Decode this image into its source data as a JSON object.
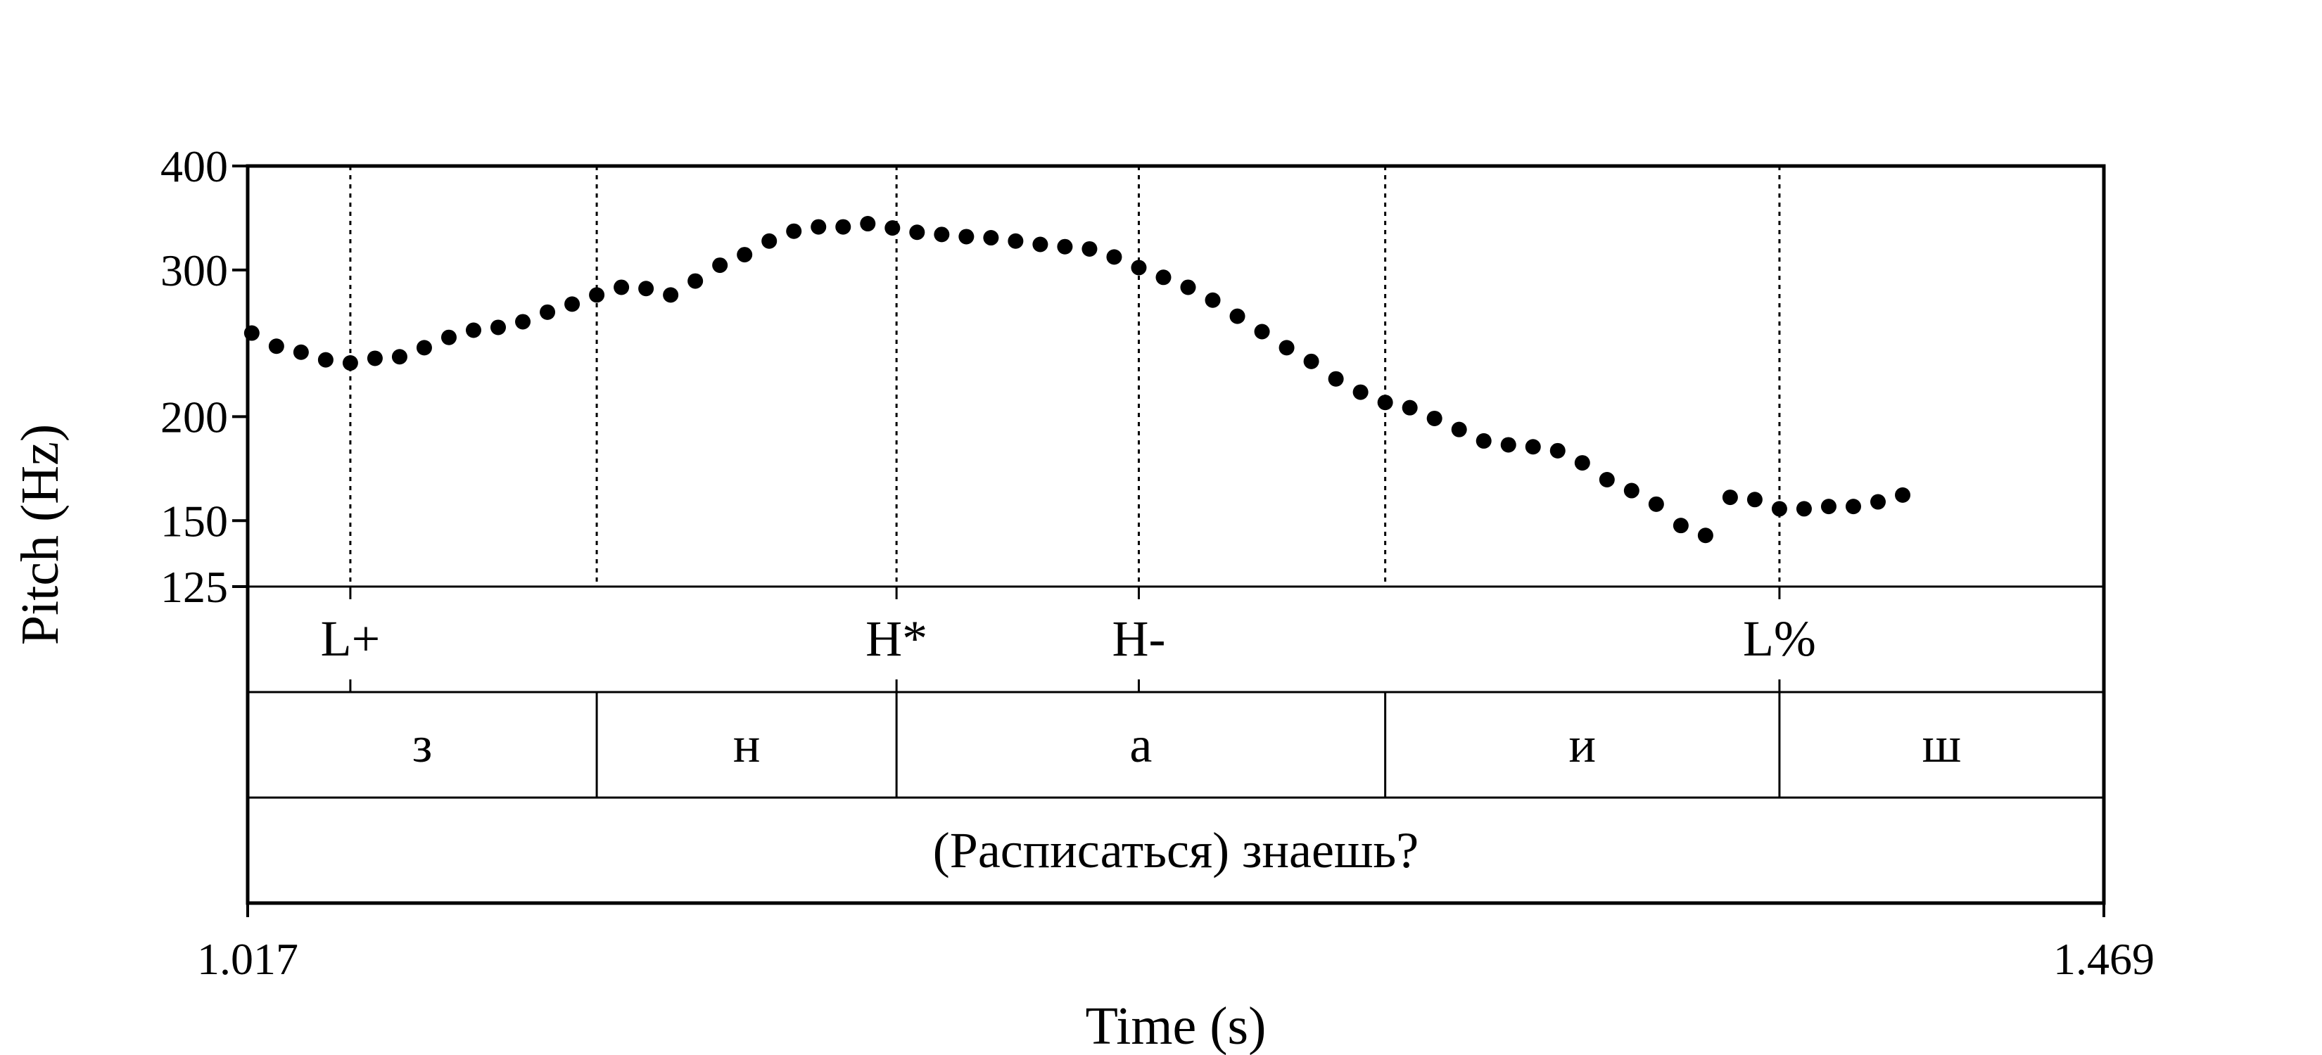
{
  "chart_data": {
    "type": "scatter",
    "xlabel": "Time (s)",
    "ylabel": "Pitch (Hz)",
    "xlim": [
      1.017,
      1.469
    ],
    "ylim": [
      125,
      400
    ],
    "y_scale": "log",
    "x_ticks": [
      "1.017",
      "1.469"
    ],
    "y_ticks": [
      {
        "value": 400,
        "label": "400"
      },
      {
        "value": 300,
        "label": "300"
      },
      {
        "value": 200,
        "label": "200"
      },
      {
        "value": 150,
        "label": "150"
      },
      {
        "value": 125,
        "label": "125"
      }
    ],
    "series": [
      {
        "points": [
          [
            1.018,
            252
          ],
          [
            1.024,
            243
          ],
          [
            1.03,
            239
          ],
          [
            1.036,
            234
          ],
          [
            1.042,
            232
          ],
          [
            1.048,
            235
          ],
          [
            1.054,
            236
          ],
          [
            1.06,
            242
          ],
          [
            1.066,
            249
          ],
          [
            1.072,
            254
          ],
          [
            1.078,
            256
          ],
          [
            1.084,
            260
          ],
          [
            1.09,
            267
          ],
          [
            1.096,
            273
          ],
          [
            1.102,
            280
          ],
          [
            1.108,
            286
          ],
          [
            1.114,
            285
          ],
          [
            1.12,
            280
          ],
          [
            1.126,
            291
          ],
          [
            1.132,
            304
          ],
          [
            1.138,
            313
          ],
          [
            1.144,
            325
          ],
          [
            1.15,
            334
          ],
          [
            1.156,
            338
          ],
          [
            1.162,
            338
          ],
          [
            1.168,
            341
          ],
          [
            1.174,
            337
          ],
          [
            1.18,
            333
          ],
          [
            1.186,
            331
          ],
          [
            1.192,
            329
          ],
          [
            1.198,
            328
          ],
          [
            1.204,
            325
          ],
          [
            1.21,
            322
          ],
          [
            1.216,
            320
          ],
          [
            1.222,
            318
          ],
          [
            1.228,
            311
          ],
          [
            1.234,
            302
          ],
          [
            1.24,
            294
          ],
          [
            1.246,
            286
          ],
          [
            1.252,
            276
          ],
          [
            1.258,
            264
          ],
          [
            1.264,
            253
          ],
          [
            1.27,
            242
          ],
          [
            1.276,
            233
          ],
          [
            1.282,
            222
          ],
          [
            1.288,
            214
          ],
          [
            1.294,
            208
          ],
          [
            1.3,
            205
          ],
          [
            1.306,
            199
          ],
          [
            1.312,
            193
          ],
          [
            1.318,
            187
          ],
          [
            1.324,
            185
          ],
          [
            1.33,
            184
          ],
          [
            1.336,
            182
          ],
          [
            1.342,
            176
          ],
          [
            1.348,
            168
          ],
          [
            1.354,
            163
          ],
          [
            1.36,
            157
          ],
          [
            1.366,
            148
          ],
          [
            1.372,
            144
          ],
          [
            1.378,
            160
          ],
          [
            1.384,
            159
          ],
          [
            1.39,
            155
          ],
          [
            1.396,
            155
          ],
          [
            1.402,
            156
          ],
          [
            1.408,
            156
          ],
          [
            1.414,
            158
          ],
          [
            1.42,
            161
          ]
        ]
      }
    ],
    "tiers": [
      {
        "kind": "point",
        "items": [
          {
            "time": 1.042,
            "label": "L+"
          },
          {
            "time": 1.175,
            "label": "H*"
          },
          {
            "time": 1.234,
            "label": "H-"
          },
          {
            "time": 1.39,
            "label": "L%"
          }
        ]
      },
      {
        "kind": "interval",
        "boundaries": [
          1.017,
          1.102,
          1.175,
          1.294,
          1.39,
          1.469
        ],
        "labels": [
          "з",
          "н",
          "а",
          "и",
          "ш"
        ]
      },
      {
        "kind": "interval",
        "boundaries": [
          1.017,
          1.469
        ],
        "labels": [
          "(Расписаться) знаешь?"
        ]
      }
    ]
  }
}
